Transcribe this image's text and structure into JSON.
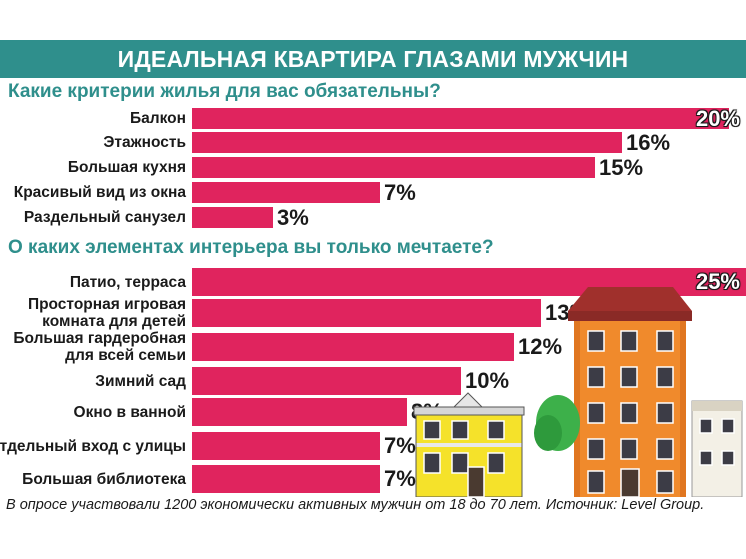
{
  "title": "ИДЕАЛЬНАЯ КВАРТИРА ГЛАЗАМИ МУЖЧИН",
  "footnote": "В опросе участвовали 1200 экономически активных мужчин от 18 до 70 лет. Источник: Level Group.",
  "colors": {
    "bar": "#e0245e",
    "title_bg": "#2f8f8c",
    "question": "#2f8f8c"
  },
  "chart_data": [
    {
      "type": "bar",
      "orientation": "horizontal",
      "title": "Какие критерии жилья для вас обязательны?",
      "categories": [
        "Балкон",
        "Этажность",
        "Большая кухня",
        "Красивый вид из окна",
        "Раздельный санузел"
      ],
      "values": [
        20,
        16,
        15,
        7,
        3
      ],
      "value_labels": [
        "20%",
        "16%",
        "15%",
        "7%",
        "3%"
      ],
      "unit": "%"
    },
    {
      "type": "bar",
      "orientation": "horizontal",
      "title": "О каких элементах интерьера вы только мечтаете?",
      "categories": [
        "Патио, терраса",
        "Просторная игровая комната для детей",
        "Большая гардеробная для всей семьи",
        "Зимний сад",
        "Окно в ванной",
        "Отдельный вход с улицы",
        "Большая библиотека"
      ],
      "category_lines": [
        [
          "Патио, терраса"
        ],
        [
          "Просторная игровая",
          "комната для детей"
        ],
        [
          "Большая гардеробная",
          "для всей семьи"
        ],
        [
          "Зимний сад"
        ],
        [
          "Окно в ванной"
        ],
        [
          "Отдельный вход с улицы"
        ],
        [
          "Большая библиотека"
        ]
      ],
      "values": [
        25,
        13,
        12,
        10,
        8,
        7,
        7
      ],
      "value_labels": [
        "25%",
        "13%",
        "12%",
        "10%",
        "8%",
        "7%",
        "7%"
      ],
      "unit": "%"
    }
  ]
}
